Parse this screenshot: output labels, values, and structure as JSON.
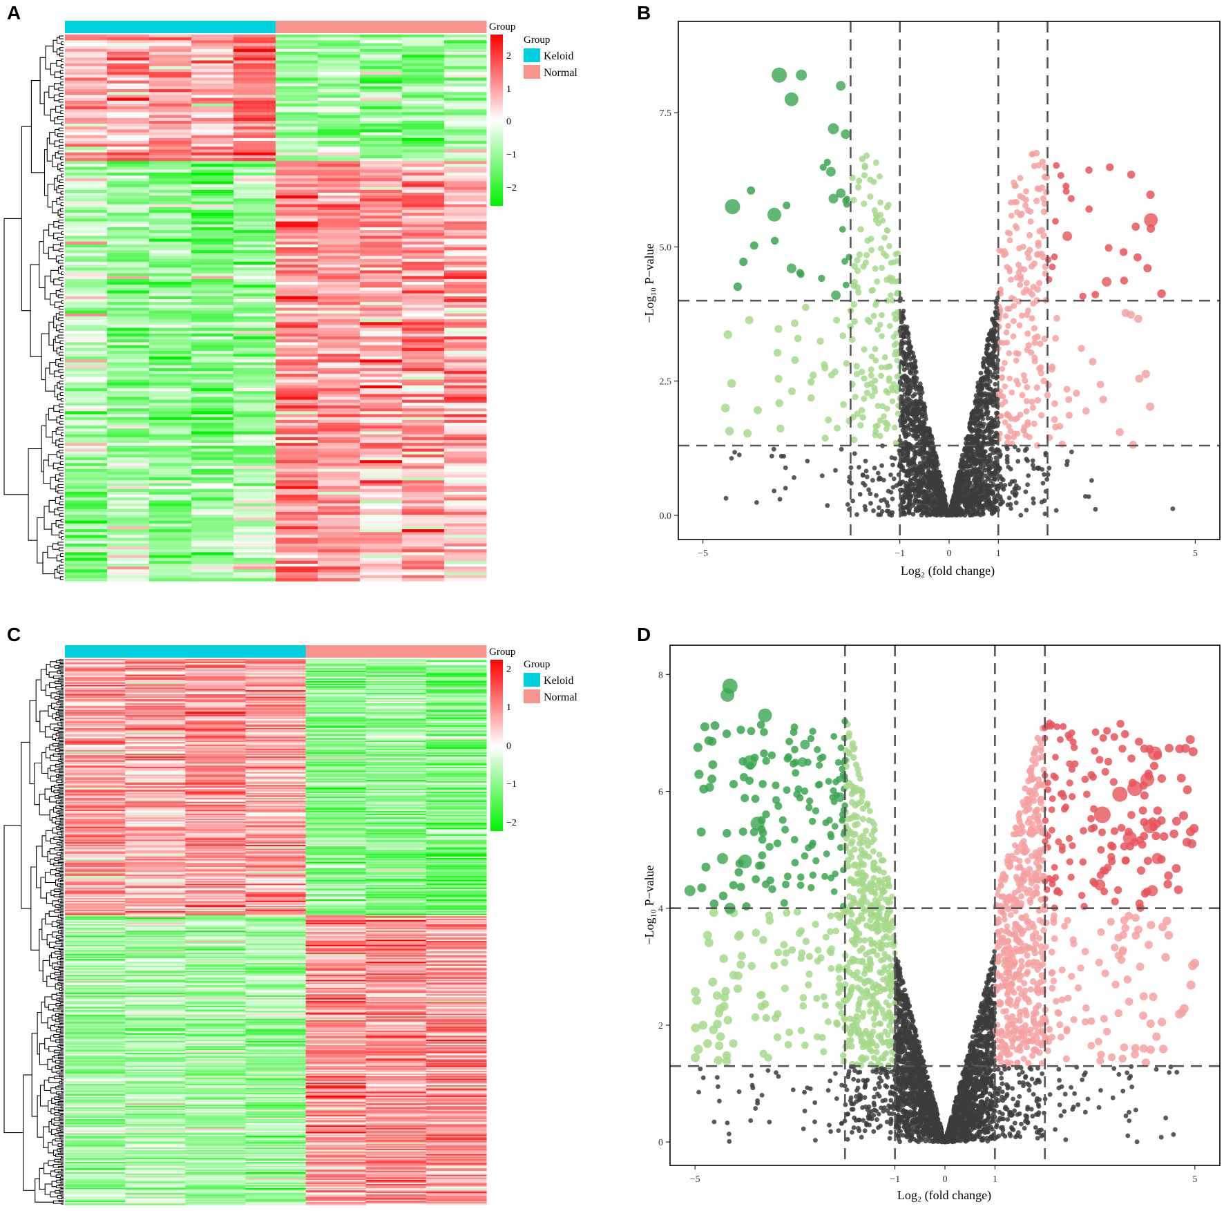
{
  "figure": {
    "panels": [
      "A",
      "B",
      "C",
      "D"
    ]
  },
  "colors": {
    "keloid": "#00d0de",
    "normal": "#f7948e",
    "heat_low": "#00f200",
    "heat_mid": "#ffffff",
    "heat_high": "#ff0000",
    "ns_point": "#3c3c3c",
    "down_light": "#a5d98a",
    "down_dark": "#3aa64f",
    "up_light": "#f6a1a1",
    "up_dark": "#e8545a",
    "threshold_line": "#555555"
  },
  "chart_data": [
    {
      "panel": "A",
      "type": "heatmap",
      "title": "",
      "columns": 10,
      "rows": 190,
      "column_groups": [
        "Keloid",
        "Keloid",
        "Keloid",
        "Keloid",
        "Keloid",
        "Normal",
        "Normal",
        "Normal",
        "Normal",
        "Normal"
      ],
      "legend": {
        "title": "Group",
        "entries": [
          "Keloid",
          "Normal"
        ],
        "colorbar_title": "Group",
        "colorbar_ticks": [
          "2",
          "1",
          "0",
          "−1",
          "−2"
        ],
        "colorbar_range": [
          -2.5,
          2.5
        ]
      },
      "row_blocks": [
        {
          "fraction": 0.23,
          "means": [
            0.6,
            0.9,
            1.0,
            0.7,
            1.4,
            -0.9,
            -0.8,
            -1.0,
            -1.1,
            -0.8
          ]
        },
        {
          "fraction": 0.55,
          "means": [
            -0.6,
            -1.0,
            -1.1,
            -1.3,
            -1.0,
            1.1,
            1.0,
            1.0,
            0.9,
            0.8
          ]
        },
        {
          "fraction": 0.22,
          "means": [
            -0.9,
            -0.6,
            -0.9,
            -0.8,
            -0.5,
            1.2,
            0.9,
            0.6,
            0.7,
            0.5
          ]
        }
      ]
    },
    {
      "panel": "B",
      "type": "scatter",
      "subtype": "volcano",
      "xlabel": "Log₂ (fold change)",
      "ylabel": "−Log₁₀ P−value",
      "xlim": [
        -5.5,
        5.5
      ],
      "ylim": [
        -0.45,
        9.2
      ],
      "xticks": [
        -5,
        -1,
        0,
        1,
        5
      ],
      "xtick_labels": [
        "−5",
        "−1",
        "0",
        "1",
        "5"
      ],
      "yticks": [
        0,
        2.5,
        5,
        7.5
      ],
      "ytick_labels": [
        "0.0",
        "2.5",
        "5.0",
        "7.5"
      ],
      "vlines": [
        -2,
        -1,
        1,
        2
      ],
      "hlines": [
        1.3,
        4
      ],
      "n_background_points": 2600,
      "highlight_points": [
        {
          "x": -3.45,
          "y": 8.2,
          "r": 11,
          "c": "dark"
        },
        {
          "x": -3.0,
          "y": 8.2,
          "r": 8,
          "c": "dark"
        },
        {
          "x": -3.2,
          "y": 7.75,
          "r": 10,
          "c": "dark"
        },
        {
          "x": -2.2,
          "y": 8.0,
          "r": 7,
          "c": "dark"
        },
        {
          "x": -2.35,
          "y": 7.2,
          "r": 8,
          "c": "dark"
        },
        {
          "x": -2.1,
          "y": 7.1,
          "r": 7,
          "c": "dark"
        },
        {
          "x": -2.4,
          "y": 6.4,
          "r": 7,
          "c": "dark"
        },
        {
          "x": -2.2,
          "y": 6.0,
          "r": 7,
          "c": "dark"
        },
        {
          "x": -2.35,
          "y": 5.9,
          "r": 7,
          "c": "dark"
        },
        {
          "x": -4.4,
          "y": 5.75,
          "r": 11,
          "c": "dark"
        },
        {
          "x": -3.55,
          "y": 5.6,
          "r": 10,
          "c": "dark"
        },
        {
          "x": -3.2,
          "y": 4.6,
          "r": 7,
          "c": "dark"
        },
        {
          "x": -2.3,
          "y": 4.1,
          "r": 7,
          "c": "dark"
        },
        {
          "x": 4.1,
          "y": 5.5,
          "r": 10,
          "c": "dark_up"
        },
        {
          "x": 2.4,
          "y": 5.2,
          "r": 7,
          "c": "dark_up"
        },
        {
          "x": 3.2,
          "y": 4.35,
          "r": 7,
          "c": "dark_up"
        }
      ]
    },
    {
      "panel": "C",
      "type": "heatmap",
      "title": "",
      "columns": 7,
      "rows": 420,
      "column_groups": [
        "Keloid",
        "Keloid",
        "Keloid",
        "Keloid",
        "Normal",
        "Normal",
        "Normal"
      ],
      "legend": {
        "title": "Group",
        "entries": [
          "Keloid",
          "Normal"
        ],
        "colorbar_title": "Group",
        "colorbar_ticks": [
          "2",
          "1",
          "0",
          "−1",
          "−2"
        ],
        "colorbar_range": [
          -2.5,
          2.5
        ]
      },
      "row_blocks": [
        {
          "fraction": 0.47,
          "means": [
            0.95,
            0.75,
            1.0,
            0.8,
            -1.1,
            -1.1,
            -1.3
          ]
        },
        {
          "fraction": 0.53,
          "means": [
            -0.9,
            -0.75,
            -0.85,
            -0.95,
            1.0,
            1.0,
            1.0
          ]
        }
      ]
    },
    {
      "panel": "D",
      "type": "scatter",
      "subtype": "volcano",
      "xlabel": "Log₂ (fold change)",
      "ylabel": "−Log₁₀ P−value",
      "xlim": [
        -5.5,
        5.5
      ],
      "ylim": [
        -0.4,
        8.5
      ],
      "xticks": [
        -5,
        -1,
        0,
        1,
        5
      ],
      "xtick_labels": [
        "−5",
        "−1",
        "0",
        "1",
        "5"
      ],
      "yticks": [
        0,
        2,
        4,
        6,
        8
      ],
      "ytick_labels": [
        "0",
        "2",
        "4",
        "6",
        "8"
      ],
      "vlines": [
        -2,
        -1,
        1,
        2
      ],
      "hlines": [
        1.3,
        4
      ],
      "n_background_points": 4200,
      "highlight_points": [
        {
          "x": -4.3,
          "y": 7.8,
          "r": 11,
          "c": "dark"
        },
        {
          "x": -4.35,
          "y": 7.65,
          "r": 10,
          "c": "dark"
        },
        {
          "x": -3.6,
          "y": 7.3,
          "r": 10,
          "c": "dark"
        },
        {
          "x": -2.8,
          "y": 6.8,
          "r": 7,
          "c": "dark"
        },
        {
          "x": -2.85,
          "y": 6.5,
          "r": 7,
          "c": "dark"
        },
        {
          "x": -3.9,
          "y": 6.5,
          "r": 10,
          "c": "dark"
        },
        {
          "x": -3.75,
          "y": 5.45,
          "r": 10,
          "c": "dark"
        },
        {
          "x": -4.0,
          "y": 4.8,
          "r": 10,
          "c": "dark"
        },
        {
          "x": -4.45,
          "y": 4.85,
          "r": 8,
          "c": "dark"
        },
        {
          "x": -5.1,
          "y": 4.3,
          "r": 8,
          "c": "dark"
        },
        {
          "x": -4.3,
          "y": 4.0,
          "r": 8,
          "c": "dark"
        },
        {
          "x": -2.1,
          "y": 5.9,
          "r": 7,
          "c": "dark"
        },
        {
          "x": 4.2,
          "y": 6.65,
          "r": 10,
          "c": "dark_up"
        },
        {
          "x": 4.05,
          "y": 6.2,
          "r": 10,
          "c": "dark_up"
        },
        {
          "x": 3.8,
          "y": 6.05,
          "r": 11,
          "c": "dark_up"
        },
        {
          "x": 3.5,
          "y": 5.95,
          "r": 11,
          "c": "dark_up"
        },
        {
          "x": 3.15,
          "y": 5.6,
          "r": 12,
          "c": "dark_up"
        },
        {
          "x": 4.1,
          "y": 5.4,
          "r": 10,
          "c": "dark_up"
        },
        {
          "x": 3.7,
          "y": 5.2,
          "r": 10,
          "c": "dark_up"
        },
        {
          "x": 4.25,
          "y": 4.85,
          "r": 8,
          "c": "dark_up"
        },
        {
          "x": 4.15,
          "y": 4.3,
          "r": 8,
          "c": "dark_up"
        },
        {
          "x": 3.1,
          "y": 4.4,
          "r": 8,
          "c": "dark_up"
        }
      ]
    }
  ]
}
